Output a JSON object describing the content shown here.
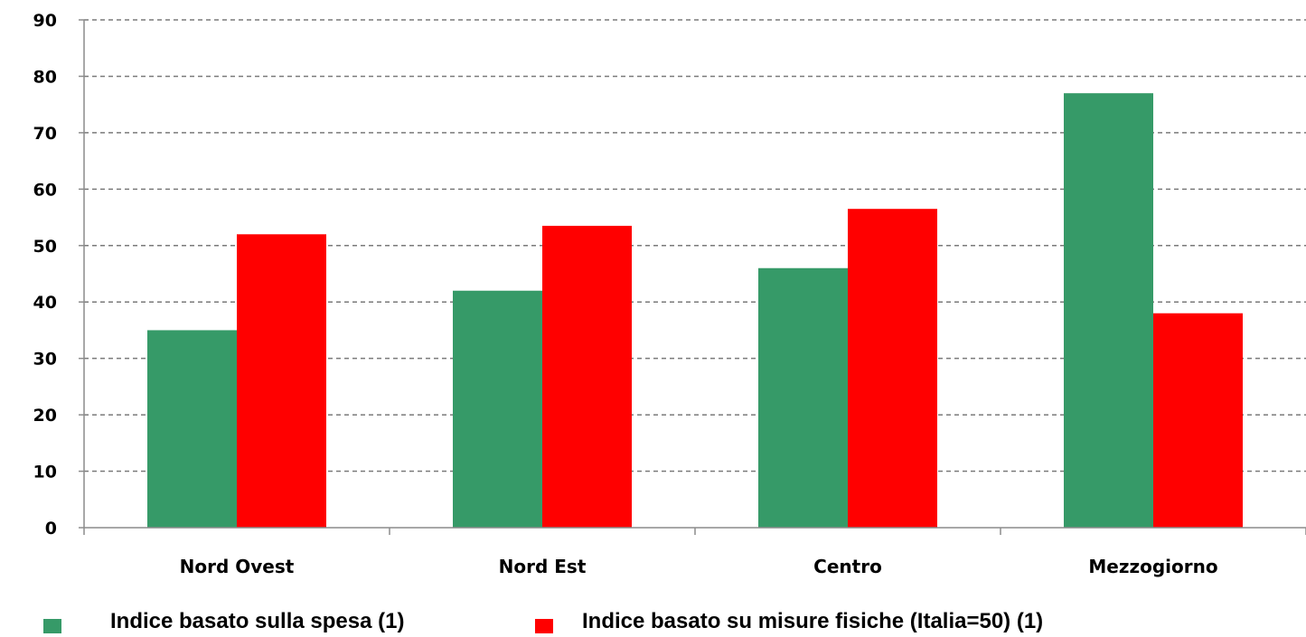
{
  "chart_data": {
    "type": "bar",
    "categories": [
      "Nord Ovest",
      "Nord Est",
      "Centro",
      "Mezzogiorno"
    ],
    "series": [
      {
        "name": "Indice basato sulla spesa (1)",
        "values": [
          35,
          42,
          46,
          77
        ],
        "color": "#369a68"
      },
      {
        "name": "Indice basato su misure fisiche (Italia=50) (1)",
        "values": [
          52,
          53.5,
          56.5,
          38
        ],
        "color": "#ff0000"
      }
    ],
    "ylim": [
      0,
      90
    ],
    "yticks": [
      0,
      10,
      20,
      30,
      40,
      50,
      60,
      70,
      80,
      90
    ],
    "grid": true,
    "legend_position": "bottom",
    "title": "",
    "xlabel": "",
    "ylabel": ""
  }
}
